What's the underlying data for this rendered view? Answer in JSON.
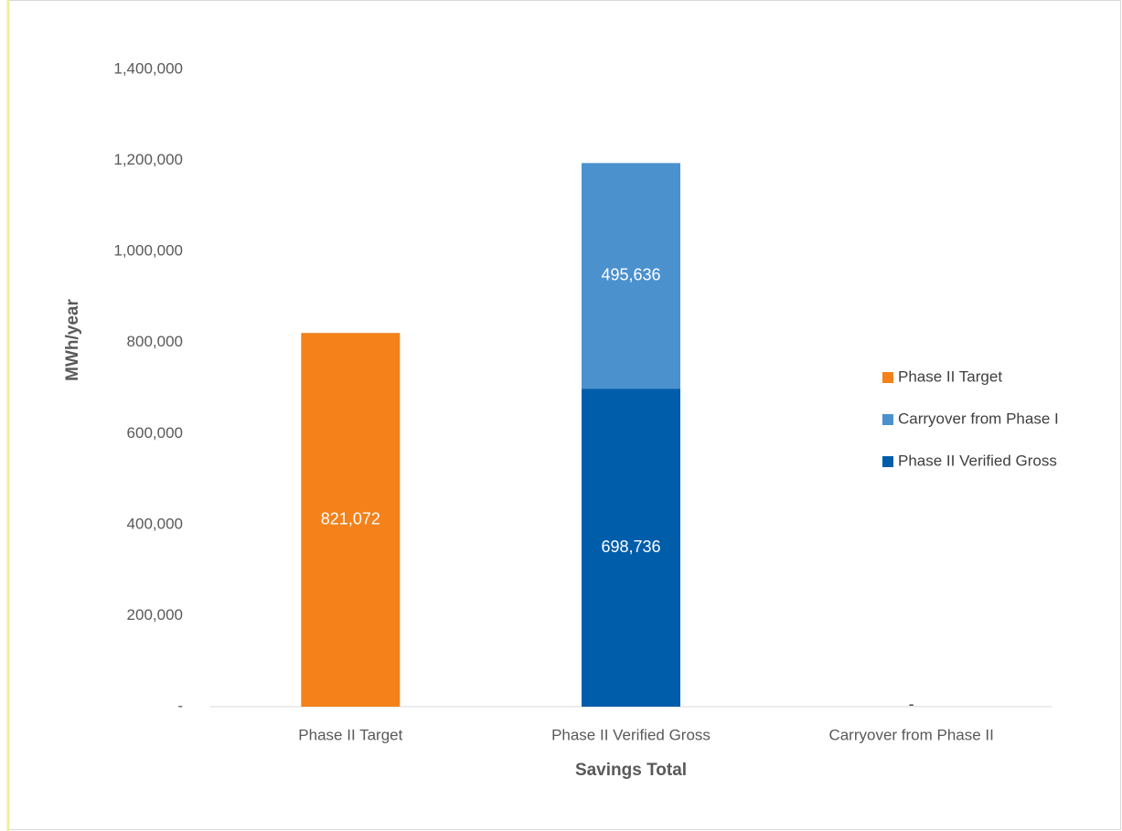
{
  "chart_data": {
    "type": "stacked_bar",
    "xlabel": "Savings Total",
    "ylabel": "MWh/year",
    "categories": [
      "Phase II Target",
      "Phase II Verified Gross",
      "Carryover from Phase II"
    ],
    "series": [
      {
        "name": "Phase II Target",
        "color": "#f4811a",
        "values": [
          821072,
          null,
          0
        ],
        "value_labels": [
          "821,072",
          null,
          "-"
        ]
      },
      {
        "name": "Carryover from Phase I",
        "color": "#4b91ce",
        "values": [
          null,
          495636,
          null
        ],
        "value_labels": [
          null,
          "495,636",
          null
        ]
      },
      {
        "name": "Phase II Verified Gross",
        "color": "#005daa",
        "values": [
          null,
          698736,
          null
        ],
        "value_labels": [
          null,
          "698,736",
          null
        ]
      }
    ],
    "ylim": [
      0,
      1400000
    ],
    "yticks": [
      {
        "value": 0,
        "label": "-"
      },
      {
        "value": 200000,
        "label": "200,000"
      },
      {
        "value": 400000,
        "label": "400,000"
      },
      {
        "value": 600000,
        "label": "600,000"
      },
      {
        "value": 800000,
        "label": "800,000"
      },
      {
        "value": 1000000,
        "label": "1,000,000"
      },
      {
        "value": 1200000,
        "label": "1,200,000"
      },
      {
        "value": 1400000,
        "label": "1,400,000"
      }
    ],
    "legend": "right"
  }
}
